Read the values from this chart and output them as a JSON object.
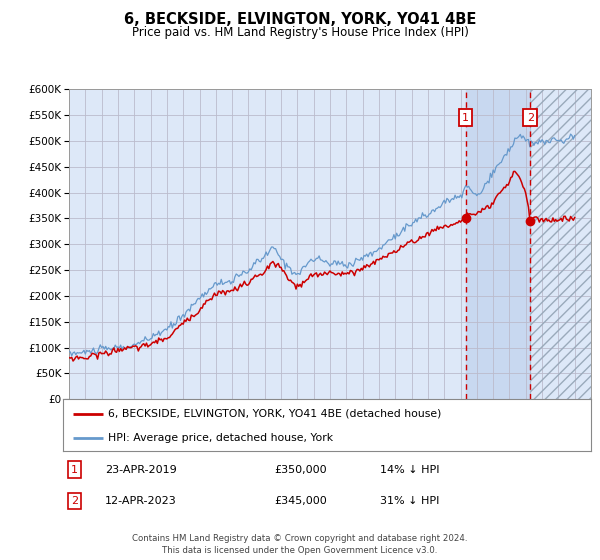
{
  "title": "6, BECKSIDE, ELVINGTON, YORK, YO41 4BE",
  "subtitle": "Price paid vs. HM Land Registry's House Price Index (HPI)",
  "footer": "Contains HM Land Registry data © Crown copyright and database right 2024.\nThis data is licensed under the Open Government Licence v3.0.",
  "legend_line1": "6, BECKSIDE, ELVINGTON, YORK, YO41 4BE (detached house)",
  "legend_line2": "HPI: Average price, detached house, York",
  "table_rows": [
    {
      "num": "1",
      "date": "23-APR-2019",
      "price": "£350,000",
      "pct": "14% ↓ HPI"
    },
    {
      "num": "2",
      "date": "12-APR-2023",
      "price": "£345,000",
      "pct": "31% ↓ HPI"
    }
  ],
  "sale1_year": 2019.31,
  "sale1_price": 350000,
  "sale2_year": 2023.28,
  "sale2_price": 345000,
  "hpi_color": "#6699cc",
  "price_color": "#cc0000",
  "background_color": "#ffffff",
  "plot_bg_color": "#dde8f8",
  "grid_color": "#bbbbcc",
  "shaded_region_color": "#c8d8f0",
  "ylim_min": 0,
  "ylim_max": 600000,
  "xmin": 1995,
  "xmax": 2027
}
